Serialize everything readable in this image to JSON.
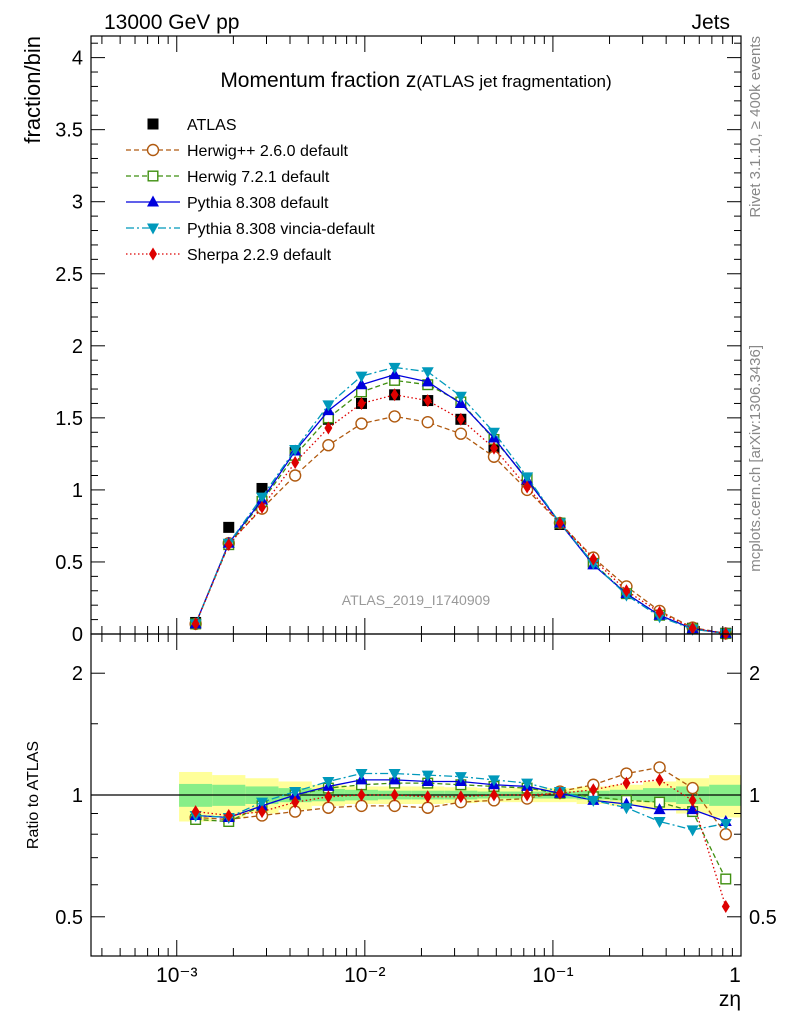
{
  "header": {
    "left": "13000 GeV pp",
    "right": "Jets"
  },
  "side_labels": {
    "rivet": "Rivet 3.1.10, ≥ 400k events",
    "mcplots": "mcplots.cern.ch [arXiv:1306.3436]"
  },
  "chart_data": {
    "type": "scatter",
    "title_main": "Momentum fraction z",
    "title_sub": "(ATLAS jet fragmentation)",
    "watermark": "ATLAS_2019_I1740909",
    "xlabel": "zη",
    "xscale": "log",
    "xlim": [
      0.00035,
      1.0
    ],
    "x_tick_labels": [
      "10⁻³",
      "10⁻²",
      "10⁻¹",
      "1"
    ],
    "main": {
      "ylabel": "fraction/bin",
      "ylim": [
        0,
        4.15
      ],
      "y_tick_labels": [
        "0",
        "0.5",
        "1",
        "1.5",
        "2",
        "2.5",
        "3",
        "3.5",
        "4"
      ]
    },
    "ratio": {
      "ylabel": "Ratio to ATLAS",
      "yscale": "log",
      "ylim": [
        0.4,
        2.5
      ],
      "y_tick_labels": [
        "0.5",
        "1",
        "2"
      ],
      "band_inner_color": "#88ee88",
      "band_outer_color": "#ffff99"
    },
    "x": [
      0.00126,
      0.00189,
      0.00284,
      0.00426,
      0.0064,
      0.0096,
      0.0144,
      0.0216,
      0.0324,
      0.0486,
      0.0729,
      0.109,
      0.164,
      0.246,
      0.369,
      0.553,
      0.83
    ],
    "ratio_band": {
      "inner": [
        0.065,
        0.06,
        0.05,
        0.04,
        0.035,
        0.03,
        0.025,
        0.025,
        0.025,
        0.02,
        0.02,
        0.02,
        0.025,
        0.03,
        0.04,
        0.05,
        0.06
      ],
      "outer": [
        0.14,
        0.12,
        0.1,
        0.08,
        0.06,
        0.05,
        0.05,
        0.05,
        0.045,
        0.04,
        0.04,
        0.04,
        0.05,
        0.06,
        0.08,
        0.1,
        0.12
      ]
    },
    "series": [
      {
        "name": "ATLAS",
        "color": "#000000",
        "marker": "square-filled",
        "line": "none",
        "values": [
          0.08,
          0.74,
          1.01,
          1.26,
          1.49,
          1.6,
          1.66,
          1.62,
          1.49,
          1.29,
          1.02,
          0.76,
          0.5,
          0.29,
          0.14,
          0.04,
          0.005
        ]
      },
      {
        "name": "Herwig++ 2.6.0 default",
        "color": "#b05a10",
        "marker": "circle-open",
        "line": "dashed",
        "values": [
          0.07,
          0.63,
          0.87,
          1.1,
          1.31,
          1.46,
          1.51,
          1.47,
          1.39,
          1.23,
          1.0,
          0.77,
          0.53,
          0.33,
          0.16,
          0.045,
          0.004
        ],
        "ratio": [
          0.88,
          0.87,
          0.89,
          0.91,
          0.93,
          0.94,
          0.94,
          0.93,
          0.96,
          0.97,
          0.98,
          1.02,
          1.06,
          1.13,
          1.17,
          1.04,
          0.8
        ]
      },
      {
        "name": "Herwig 7.2.1 default",
        "color": "#3f8f10",
        "marker": "square-open",
        "line": "dashed",
        "values": [
          0.07,
          0.62,
          0.92,
          1.24,
          1.5,
          1.68,
          1.76,
          1.73,
          1.61,
          1.35,
          1.08,
          0.77,
          0.49,
          0.28,
          0.13,
          0.036,
          0.003
        ],
        "ratio": [
          0.87,
          0.86,
          0.94,
          1.0,
          1.04,
          1.06,
          1.07,
          1.07,
          1.06,
          1.05,
          1.04,
          1.01,
          0.99,
          0.97,
          0.96,
          0.91,
          0.62
        ]
      },
      {
        "name": "Pythia 8.308 default",
        "color": "#0000dd",
        "marker": "triangle-up",
        "line": "solid",
        "values": [
          0.07,
          0.63,
          0.93,
          1.27,
          1.55,
          1.73,
          1.8,
          1.75,
          1.6,
          1.36,
          1.07,
          0.77,
          0.48,
          0.28,
          0.13,
          0.037,
          0.004
        ],
        "ratio": [
          0.89,
          0.88,
          0.94,
          1.0,
          1.05,
          1.09,
          1.09,
          1.08,
          1.08,
          1.06,
          1.05,
          1.01,
          0.97,
          0.95,
          0.92,
          0.92,
          0.86
        ]
      },
      {
        "name": "Pythia 8.308 vincia-default",
        "color": "#0099bb",
        "marker": "triangle-down",
        "line": "dashdot",
        "values": [
          0.07,
          0.63,
          0.95,
          1.28,
          1.59,
          1.79,
          1.85,
          1.82,
          1.65,
          1.4,
          1.09,
          0.77,
          0.49,
          0.27,
          0.12,
          0.033,
          0.004
        ],
        "ratio": [
          0.89,
          0.88,
          0.96,
          1.02,
          1.08,
          1.13,
          1.13,
          1.12,
          1.11,
          1.09,
          1.07,
          1.02,
          0.97,
          0.93,
          0.86,
          0.82,
          0.85
        ]
      },
      {
        "name": "Sherpa 2.2.9 default",
        "color": "#dd0000",
        "marker": "diamond",
        "line": "dotted",
        "values": [
          0.07,
          0.62,
          0.88,
          1.19,
          1.43,
          1.6,
          1.66,
          1.62,
          1.49,
          1.29,
          1.02,
          0.77,
          0.52,
          0.3,
          0.15,
          0.04,
          0.003
        ],
        "ratio": [
          0.91,
          0.89,
          0.91,
          0.96,
          0.99,
          1.0,
          1.0,
          0.99,
          0.99,
          1.0,
          1.0,
          1.01,
          1.03,
          1.07,
          1.09,
          0.97,
          0.53
        ]
      }
    ]
  }
}
